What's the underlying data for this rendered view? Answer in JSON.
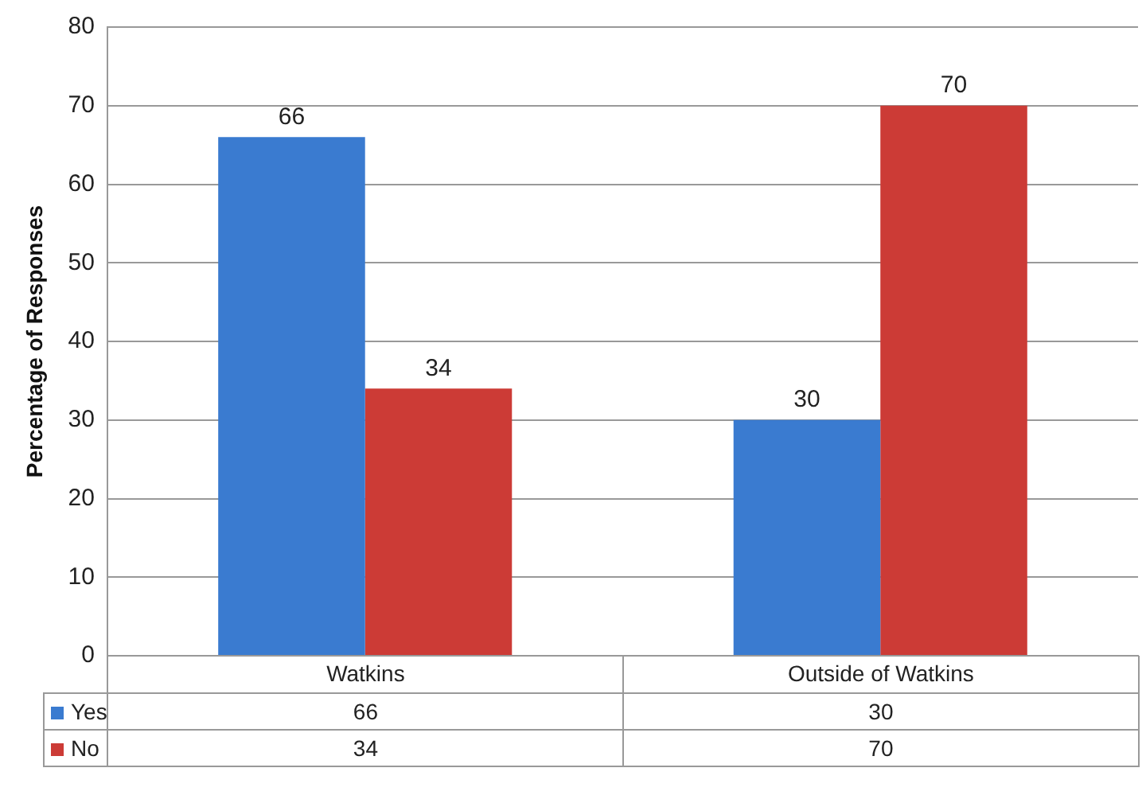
{
  "chart_data": {
    "type": "bar",
    "ylabel": "Percentage of Responses",
    "categories": [
      "Watkins",
      "Outside of Watkins"
    ],
    "series": [
      {
        "name": "Yes",
        "color": "#3a7bd0",
        "values": [
          66,
          30
        ],
        "value_labels": [
          "66",
          "30"
        ]
      },
      {
        "name": "No",
        "color": "#cc3b36",
        "values": [
          34,
          70
        ],
        "value_labels": [
          "34",
          "70"
        ]
      }
    ],
    "annotations": [
      "66",
      "30",
      "34",
      "70"
    ],
    "ylim": [
      0,
      80
    ],
    "yticks": [
      0,
      10,
      20,
      30,
      40,
      50,
      60,
      70,
      80
    ],
    "grid": "y",
    "legend": "bottom"
  }
}
